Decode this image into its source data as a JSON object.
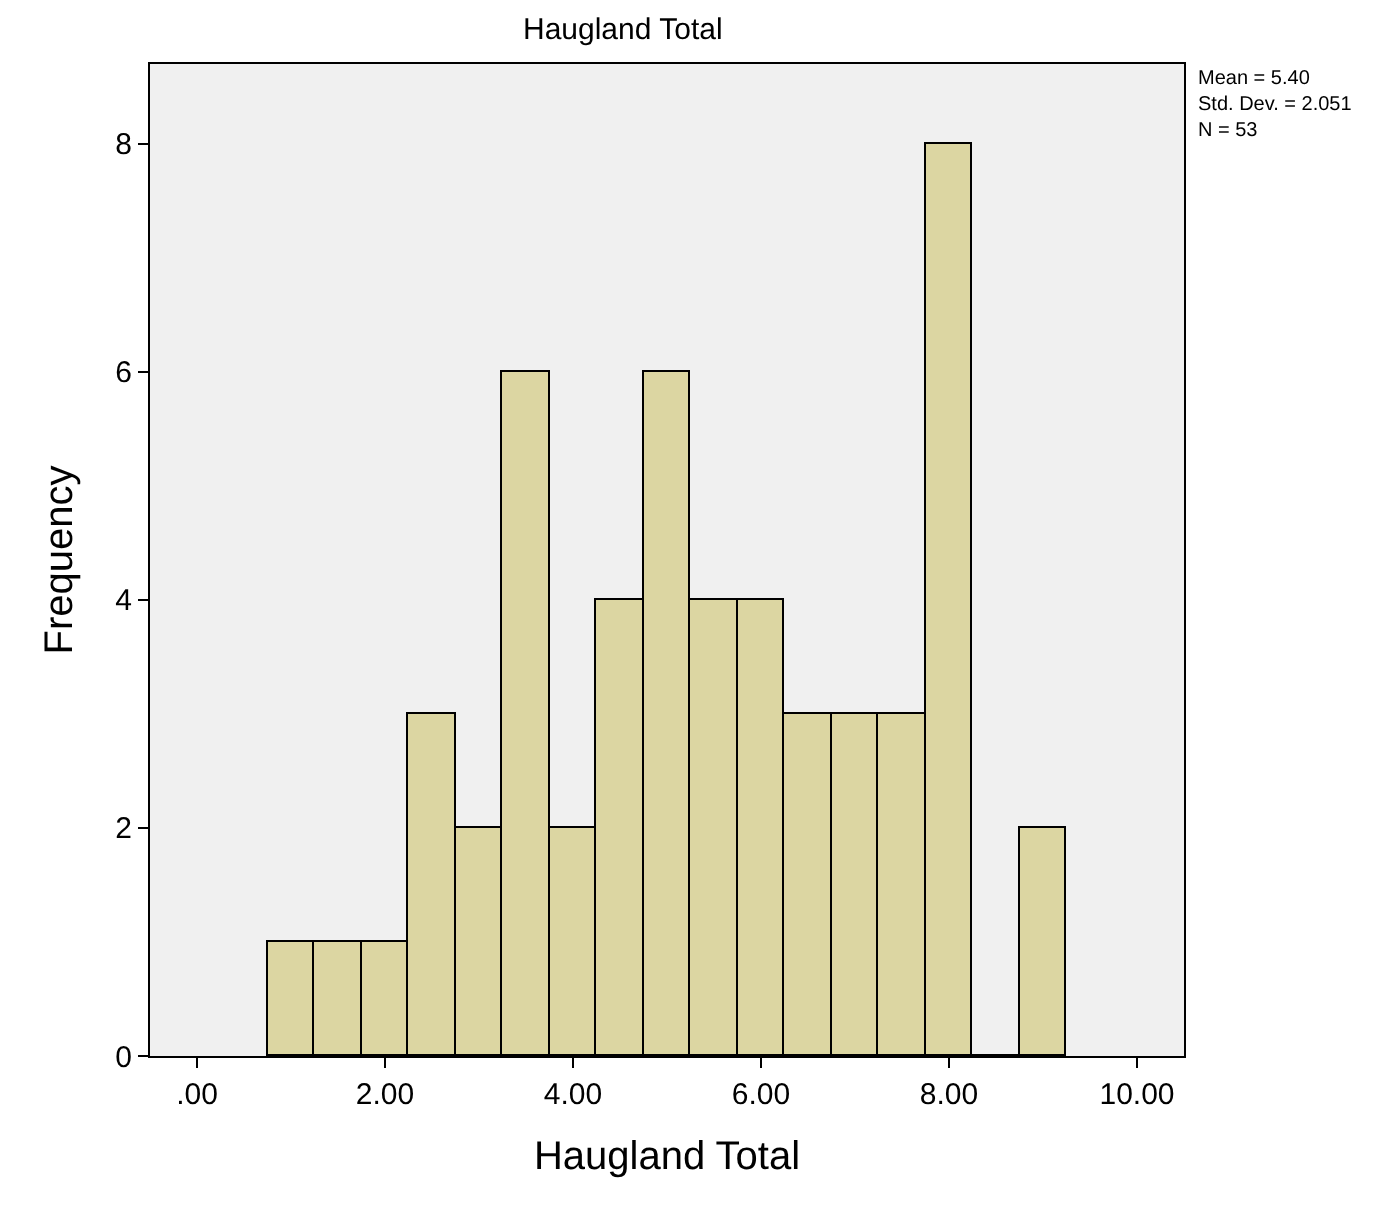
{
  "chart_data": {
    "type": "histogram",
    "title": "Haugland Total",
    "xlabel": "Haugland Total",
    "ylabel": "Frequency",
    "bins": [
      0.75,
      1.25,
      1.75,
      2.25,
      2.75,
      3.25,
      3.75,
      4.25,
      4.75,
      5.25,
      5.75,
      6.25,
      6.75,
      7.25,
      7.75,
      8.25,
      8.75,
      9.25
    ],
    "values": [
      1,
      1,
      1,
      3,
      2,
      6,
      2,
      4,
      6,
      4,
      4,
      3,
      3,
      3,
      8,
      0,
      2
    ],
    "color": "#dcd6a2",
    "xlim": [
      -0.5,
      10.5
    ],
    "xticks": [
      {
        "value": 0,
        "label": ".00"
      },
      {
        "value": 2,
        "label": "2.00"
      },
      {
        "value": 4,
        "label": "4.00"
      },
      {
        "value": 6,
        "label": "6.00"
      },
      {
        "value": 8,
        "label": "8.00"
      },
      {
        "value": 10,
        "label": "10.00"
      }
    ],
    "ylim": [
      0,
      8.7
    ],
    "yticks": [
      0,
      2,
      4,
      6,
      8
    ],
    "grid": false,
    "annotations": [
      "Mean = 5.40",
      "Std. Dev. = 2.051",
      "N = 53"
    ]
  }
}
